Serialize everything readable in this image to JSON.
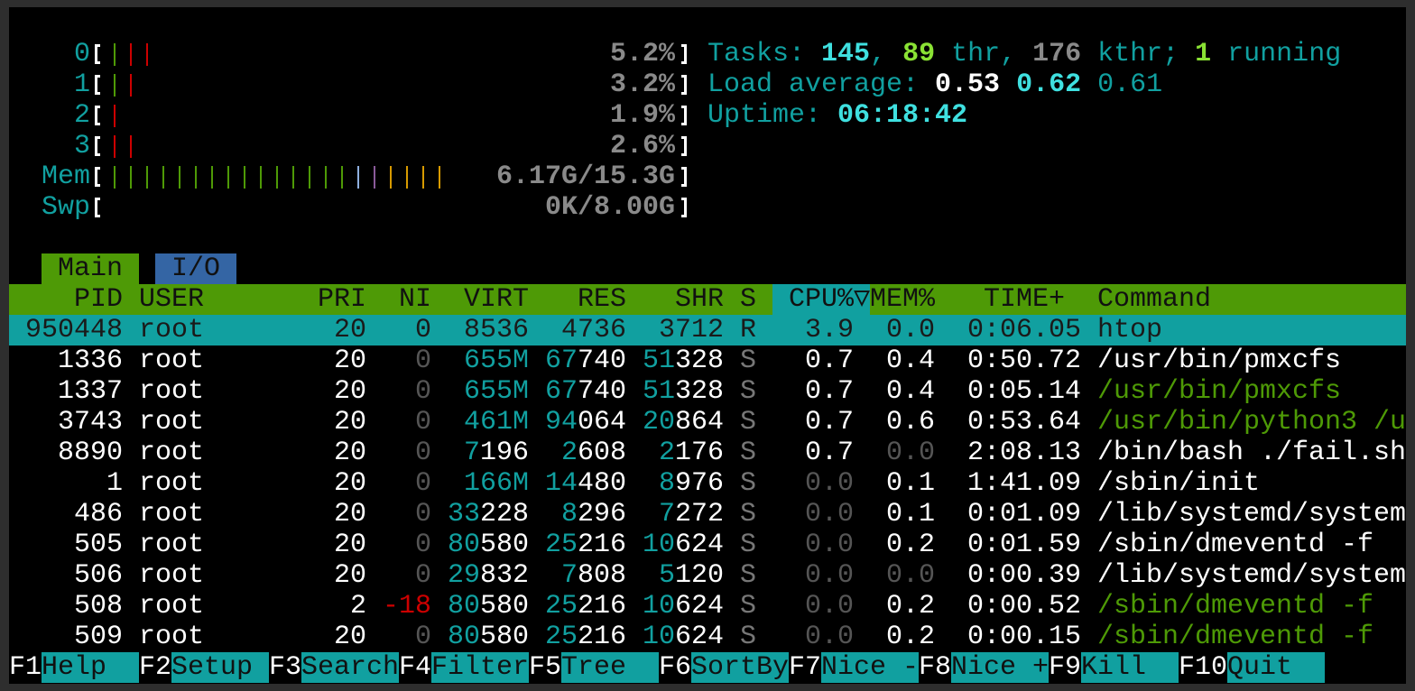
{
  "meters": [
    {
      "label": "0",
      "bars": [
        {
          "color": "#4e9a06",
          "count": 1
        },
        {
          "color": "#cc0000",
          "count": 2
        }
      ],
      "text": "5.2%"
    },
    {
      "label": "1",
      "bars": [
        {
          "color": "#4e9a06",
          "count": 1
        },
        {
          "color": "#cc0000",
          "count": 1
        }
      ],
      "text": "3.2%"
    },
    {
      "label": "2",
      "bars": [
        {
          "color": "#cc0000",
          "count": 1
        }
      ],
      "text": "1.9%"
    },
    {
      "label": "3",
      "bars": [
        {
          "color": "#cc0000",
          "count": 2
        }
      ],
      "text": "2.6%"
    },
    {
      "label": "Mem",
      "bars": [
        {
          "color": "#4e9a06",
          "count": 15
        },
        {
          "color": "#8fb0e0",
          "count": 1
        },
        {
          "color": "#8a5a9a",
          "count": 1
        },
        {
          "color": "#d79a00",
          "count": 4
        }
      ],
      "text": "6.17G/15.3G"
    },
    {
      "label": "Swp",
      "bars": [],
      "text": "0K/8.00G"
    }
  ],
  "summary": [
    [
      {
        "text": "Tasks: ",
        "color": "#11a0a0"
      },
      {
        "text": "145",
        "color": "#3fe0e0",
        "bold": true
      },
      {
        "text": ", ",
        "color": "#11a0a0"
      },
      {
        "text": "89",
        "color": "#8ae234",
        "bold": true
      },
      {
        "text": " thr, ",
        "color": "#11a0a0"
      },
      {
        "text": "176",
        "color": "#8a8a8a",
        "bold": true
      },
      {
        "text": " kthr; ",
        "color": "#11a0a0"
      },
      {
        "text": "1",
        "color": "#8ae234",
        "bold": true
      },
      {
        "text": " running",
        "color": "#11a0a0"
      }
    ],
    [
      {
        "text": "Load average: ",
        "color": "#11a0a0"
      },
      {
        "text": "0.53 ",
        "color": "#ffffff",
        "bold": true
      },
      {
        "text": "0.62 ",
        "color": "#3fe0e0",
        "bold": true
      },
      {
        "text": "0.61",
        "color": "#11a0a0"
      }
    ],
    [
      {
        "text": "Uptime: ",
        "color": "#11a0a0"
      },
      {
        "text": "06:18:42",
        "color": "#3fe0e0",
        "bold": true
      }
    ]
  ],
  "tabs": [
    "Main",
    "I/O"
  ],
  "columns": [
    "PID",
    "USER",
    "PRI",
    "NI",
    "VIRT",
    "RES",
    "SHR",
    "S",
    "CPU%▽",
    "MEM%",
    "TIME+",
    "Command"
  ],
  "processes": [
    {
      "cells": [
        "950448",
        "root",
        "20",
        "0",
        "8536",
        "4736",
        "3712",
        "R",
        "3.9",
        "0.0",
        "0:06.05",
        "htop"
      ],
      "selected": true
    },
    {
      "cells": [
        "1336",
        "root",
        "20",
        "0",
        "655M",
        "67740",
        "51328",
        "S",
        "0.7",
        "0.4",
        "0:50.72",
        "/usr/bin/pmxcfs"
      ],
      "command_color": "#ffffff"
    },
    {
      "cells": [
        "1337",
        "root",
        "20",
        "0",
        "655M",
        "67740",
        "51328",
        "S",
        "0.7",
        "0.4",
        "0:05.14",
        "/usr/bin/pmxcfs"
      ],
      "command_color": "#4e9a06"
    },
    {
      "cells": [
        "3743",
        "root",
        "20",
        "0",
        "461M",
        "94064",
        "20864",
        "S",
        "0.7",
        "0.6",
        "0:53.64",
        "/usr/bin/python3 /u"
      ],
      "command_color": "#4e9a06"
    },
    {
      "cells": [
        "8890",
        "root",
        "20",
        "0",
        "7196",
        "2608",
        "2176",
        "S",
        "0.7",
        "0.0",
        "2:08.13",
        "/bin/bash ./fail.sh"
      ],
      "command_color": "#ffffff"
    },
    {
      "cells": [
        "1",
        "root",
        "20",
        "0",
        "166M",
        "14480",
        "8976",
        "S",
        "0.0",
        "0.1",
        "1:41.09",
        "/sbin/init"
      ],
      "command_color": "#ffffff"
    },
    {
      "cells": [
        "486",
        "root",
        "20",
        "0",
        "33228",
        "8296",
        "7272",
        "S",
        "0.0",
        "0.1",
        "0:01.09",
        "/lib/systemd/system"
      ],
      "command_color": "#ffffff"
    },
    {
      "cells": [
        "505",
        "root",
        "20",
        "0",
        "80580",
        "25216",
        "10624",
        "S",
        "0.0",
        "0.2",
        "0:01.59",
        "/sbin/dmeventd -f"
      ],
      "command_color": "#ffffff"
    },
    {
      "cells": [
        "506",
        "root",
        "20",
        "0",
        "29832",
        "7808",
        "5120",
        "S",
        "0.0",
        "0.0",
        "0:00.39",
        "/lib/systemd/system"
      ],
      "command_color": "#ffffff"
    },
    {
      "cells": [
        "508",
        "root",
        "2",
        "-18",
        "80580",
        "25216",
        "10624",
        "S",
        "0.0",
        "0.2",
        "0:00.52",
        "/sbin/dmeventd -f"
      ],
      "command_color": "#4e9a06"
    },
    {
      "cells": [
        "509",
        "root",
        "20",
        "0",
        "80580",
        "25216",
        "10624",
        "S",
        "0.0",
        "0.2",
        "0:00.15",
        "/sbin/dmeventd -f"
      ],
      "command_color": "#4e9a06"
    }
  ],
  "function_keys": [
    {
      "key": "F1",
      "label": "Help"
    },
    {
      "key": "F2",
      "label": "Setup"
    },
    {
      "key": "F3",
      "label": "Search"
    },
    {
      "key": "F4",
      "label": "Filter"
    },
    {
      "key": "F5",
      "label": "Tree"
    },
    {
      "key": "F6",
      "label": "SortBy"
    },
    {
      "key": "F7",
      "label": "Nice -"
    },
    {
      "key": "F8",
      "label": "Nice +"
    },
    {
      "key": "F9",
      "label": "Kill"
    },
    {
      "key": "F10",
      "label": "Quit"
    }
  ]
}
